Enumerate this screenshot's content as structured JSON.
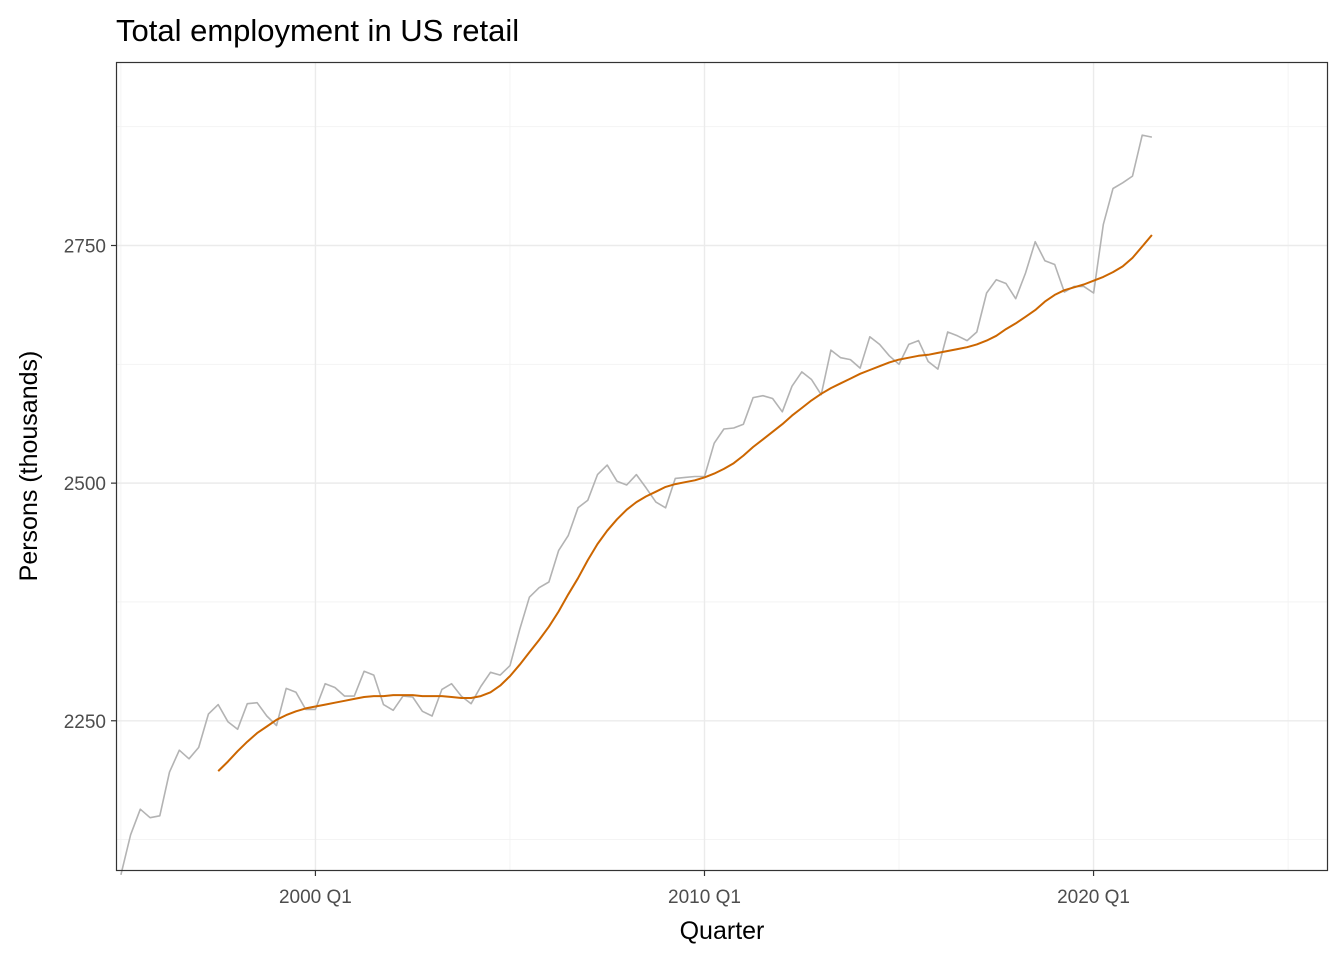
{
  "chart_data": {
    "type": "line",
    "title": "Total employment in US retail",
    "xlabel": "Quarter",
    "ylabel": "Persons (thousands)",
    "x_ticks": [
      {
        "label": "2000 Q1",
        "value": 2000.0
      },
      {
        "label": "2010 Q1",
        "value": 2010.0
      },
      {
        "label": "2020 Q1",
        "value": 2020.0
      }
    ],
    "y_ticks": [
      2250,
      2500,
      2750
    ],
    "xlim": [
      1994.9,
      2026.0
    ],
    "ylim": [
      2093,
      2942
    ],
    "grid": true,
    "x_start": 1995.0,
    "x_step": 0.25,
    "series": [
      {
        "color": "#b3b3b3",
        "values": [
          2088,
          2130,
          2157,
          2148,
          2150,
          2196,
          2219,
          2210,
          2222,
          2257,
          2267,
          2249,
          2241,
          2268,
          2269,
          2255,
          2245,
          2284,
          2280,
          2262,
          2262,
          2289,
          2285,
          2276,
          2276,
          2302,
          2298,
          2267,
          2261,
          2276,
          2275,
          2260,
          2255,
          2283,
          2289,
          2276,
          2268,
          2286,
          2301,
          2298,
          2308,
          2346,
          2380,
          2390,
          2396,
          2429,
          2445,
          2474,
          2482,
          2509,
          2519,
          2502,
          2498,
          2509,
          2495,
          2480,
          2474,
          2505,
          2506,
          2507,
          2507,
          2542,
          2557,
          2558,
          2562,
          2590,
          2592,
          2589,
          2575,
          2602,
          2617,
          2609,
          2593,
          2640,
          2632,
          2630,
          2621,
          2654,
          2646,
          2634,
          2625,
          2646,
          2650,
          2628,
          2620,
          2659,
          2655,
          2650,
          2659,
          2700,
          2714,
          2710,
          2694,
          2721,
          2754,
          2734,
          2730,
          2701,
          2707,
          2707,
          2700,
          2772,
          2810,
          2816,
          2823,
          2866,
          2864
        ]
      },
      {
        "color": "#cc6600",
        "values": [
          2197,
          2207,
          2218,
          2228,
          2237,
          2244,
          2251,
          2256,
          2260,
          2263,
          2265,
          2267,
          2269,
          2271,
          2273,
          2275,
          2276,
          2276,
          2277,
          2277,
          2277,
          2276,
          2276,
          2276,
          2275,
          2274,
          2274,
          2276,
          2280,
          2287,
          2297,
          2309,
          2322,
          2335,
          2349,
          2365,
          2383,
          2400,
          2419,
          2436,
          2450,
          2462,
          2472,
          2480,
          2486,
          2491,
          2496,
          2499,
          2501,
          2503,
          2506,
          2510,
          2515,
          2521,
          2529,
          2538,
          2546,
          2554,
          2562,
          2571,
          2579,
          2587,
          2594,
          2600,
          2605,
          2610,
          2615,
          2619,
          2623,
          2627,
          2630,
          2632,
          2634,
          2635,
          2637,
          2639,
          2641,
          2643,
          2646,
          2650,
          2655,
          2662,
          2668,
          2675,
          2682,
          2691,
          2698,
          2703,
          2706,
          2709,
          2713,
          2717,
          2722,
          2728,
          2737,
          2749,
          2761
        ]
      }
    ]
  }
}
